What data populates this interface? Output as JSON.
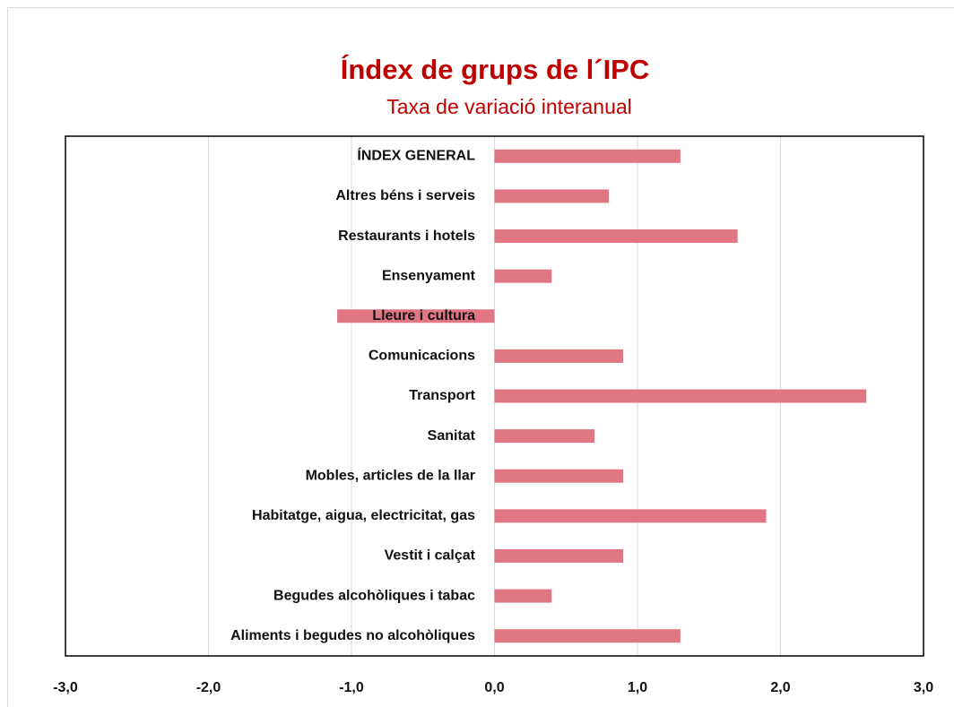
{
  "chart_data": {
    "type": "barh",
    "title": "Índex de grups de l´IPC",
    "subtitle": "Taxa de variació interanual",
    "categories": [
      "ÍNDEX GENERAL",
      "Altres béns i serveis",
      "Restaurants i hotels",
      "Ensenyament",
      "Lleure i cultura",
      "Comunicacions",
      "Transport",
      "Sanitat",
      "Mobles, articles de la llar",
      "Habitatge, aigua, electricitat, gas",
      "Vestit i calçat",
      "Begudes alcohòliques i tabac",
      "Aliments i begudes no alcohòliques"
    ],
    "values": [
      1.3,
      0.8,
      1.7,
      0.4,
      -1.1,
      0.9,
      2.6,
      0.7,
      0.9,
      1.9,
      0.9,
      0.4,
      1.3
    ],
    "color": "#e07682",
    "xlim": [
      -3,
      3
    ],
    "xticks": [
      {
        "value": -3,
        "label": "-3,0"
      },
      {
        "value": -2,
        "label": "-2,0"
      },
      {
        "value": -1,
        "label": "-1,0"
      },
      {
        "value": 0,
        "label": "0,0"
      },
      {
        "value": 1,
        "label": "1,0"
      },
      {
        "value": 2,
        "label": "2,0"
      },
      {
        "value": 3,
        "label": "3,0"
      }
    ],
    "grid": true
  }
}
